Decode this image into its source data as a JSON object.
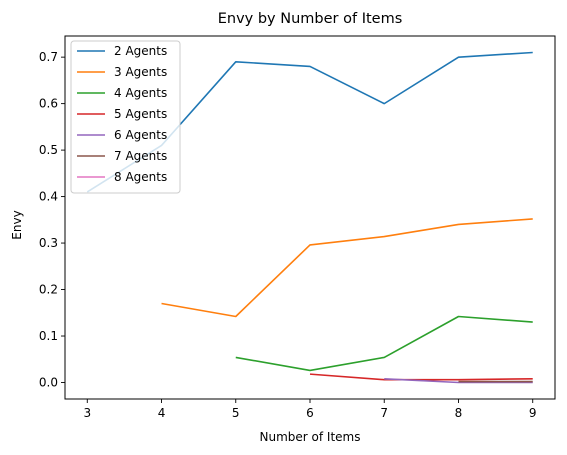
{
  "chart_data": {
    "type": "line",
    "title": "Envy by Number of Items",
    "xlabel": "Number of Items",
    "ylabel": "Envy",
    "xlim": [
      2.7,
      9.3
    ],
    "ylim": [
      -0.0355,
      0.7455
    ],
    "xticks": [
      3,
      4,
      5,
      6,
      7,
      8,
      9
    ],
    "yticks": [
      0.0,
      0.1,
      0.2,
      0.3,
      0.4,
      0.5,
      0.6,
      0.7
    ],
    "grid": false,
    "legend_position": "upper-left",
    "series": [
      {
        "name": "2 Agents",
        "color": "#1f77b4",
        "x": [
          3,
          4,
          5,
          6,
          7,
          8,
          9
        ],
        "y": [
          0.41,
          0.51,
          0.69,
          0.68,
          0.6,
          0.7,
          0.71
        ]
      },
      {
        "name": "3 Agents",
        "color": "#ff7f0e",
        "x": [
          4,
          5,
          6,
          7,
          8,
          9
        ],
        "y": [
          0.17,
          0.142,
          0.296,
          0.314,
          0.34,
          0.352
        ]
      },
      {
        "name": "4 Agents",
        "color": "#2ca02c",
        "x": [
          5,
          6,
          7,
          8,
          9
        ],
        "y": [
          0.054,
          0.026,
          0.054,
          0.142,
          0.13
        ]
      },
      {
        "name": "5 Agents",
        "color": "#d62728",
        "x": [
          6,
          7,
          8,
          9
        ],
        "y": [
          0.018,
          0.006,
          0.006,
          0.008
        ]
      },
      {
        "name": "6 Agents",
        "color": "#9467bd",
        "x": [
          7,
          8,
          9
        ],
        "y": [
          0.008,
          0.0,
          0.0
        ]
      },
      {
        "name": "7 Agents",
        "color": "#8c564b",
        "x": [
          8,
          9
        ],
        "y": [
          0.002,
          0.002
        ]
      },
      {
        "name": "8 Agents",
        "color": "#e377c2",
        "x": [
          9
        ],
        "y": [
          0.0
        ]
      }
    ]
  }
}
